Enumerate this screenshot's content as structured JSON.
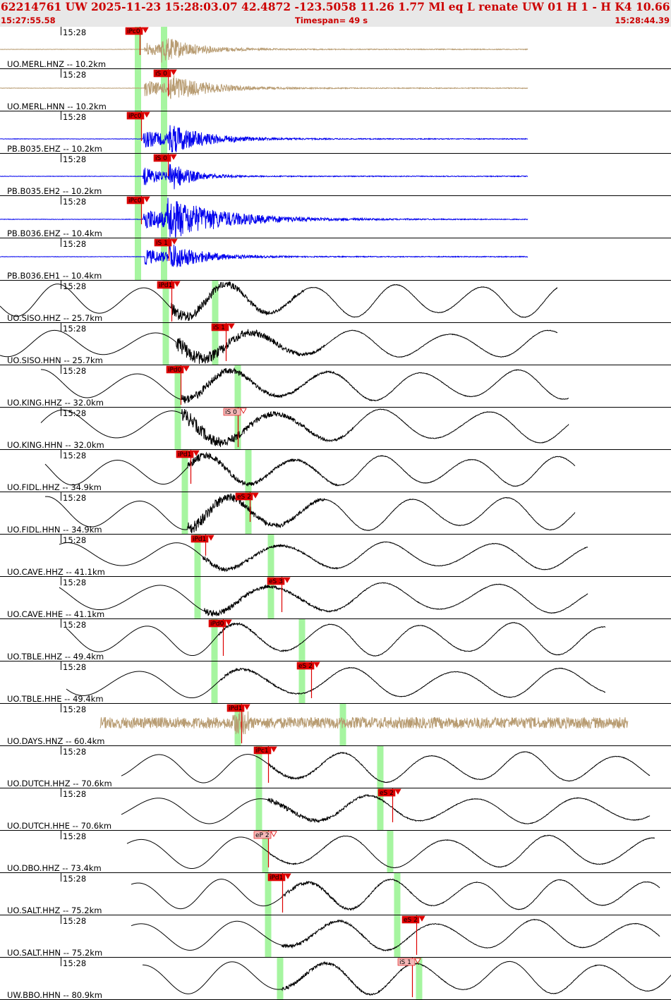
{
  "header": {
    "title": "62214761 UW 2025-11-23 15:28:03.07   42.4872 -123.5058  11.26  1.77 Ml  eq  L renate   UW 01  H   1  -  H K4   10.66  0.69",
    "start_time": "15:27:55.58",
    "timespan": "Timespan=  49 s",
    "end_time": "15:28:44.39"
  },
  "colors": {
    "beige": "#b89c72",
    "blue": "#0000ee",
    "black": "#000000",
    "pick": "#dd0000",
    "pick_weak": "#f4b8b8",
    "green": "#a6f5a0"
  },
  "tick_label": "15:28",
  "traces": [
    {
      "label": "UO.MERL.HNZ -- 10.2km",
      "color": "beige",
      "pick": {
        "label": "iPc0",
        "weak": false
      },
      "green": [
        195.5,
        232.5
      ]
    },
    {
      "label": "UO.MERL.HNN -- 10.2km",
      "color": "beige",
      "pick": {
        "label": "iS 0",
        "weak": false
      },
      "green": [
        195.5,
        232.5
      ]
    },
    {
      "label": "PB.B035.EHZ -- 10.2km",
      "color": "blue",
      "pick": {
        "label": "iPc0",
        "weak": false
      },
      "green": [
        195.5,
        232.5
      ]
    },
    {
      "label": "PB.B035.EH2 -- 10.2km",
      "color": "blue",
      "pick": {
        "label": "iS 0",
        "weak": false
      },
      "green": [
        195.5,
        232.5
      ]
    },
    {
      "label": "PB.B036.EHZ -- 10.4km",
      "color": "blue",
      "pick": {
        "label": "iPc0",
        "weak": false
      },
      "green": [
        195.5,
        232.5
      ]
    },
    {
      "label": "PB.B036.EH1 -- 10.4km",
      "color": "blue",
      "pick": {
        "label": "iS 1",
        "weak": false
      },
      "green": [
        195.5,
        232.5
      ]
    },
    {
      "label": "UO.SISO.HHZ -- 25.7km",
      "color": "black",
      "pick": {
        "label": "iPd1",
        "weak": false
      },
      "green": [
        235,
        305
      ]
    },
    {
      "label": "UO.SISO.HHN -- 25.7km",
      "color": "black",
      "pick": {
        "label": "iS 1",
        "weak": false
      },
      "green": [
        235,
        305
      ]
    },
    {
      "label": "UO.KING.HHZ -- 32.0km",
      "color": "black",
      "pick": {
        "label": "iPd0",
        "weak": false
      },
      "green": [
        252,
        337
      ]
    },
    {
      "label": "UO.KING.HHN -- 32.0km",
      "color": "black",
      "pick": {
        "label": "iS 0",
        "weak": true
      },
      "green": [
        252,
        337
      ]
    },
    {
      "label": "UO.FIDL.HHZ -- 34.9km",
      "color": "black",
      "pick": {
        "label": "iPd1",
        "weak": false
      },
      "green": [
        262,
        352
      ]
    },
    {
      "label": "UO.FIDL.HHN -- 34.9km",
      "color": "black",
      "pick": {
        "label": "eS 2",
        "weak": false
      },
      "green": [
        262,
        352
      ]
    },
    {
      "label": "UO.CAVE.HHZ -- 41.1km",
      "color": "black",
      "pick": {
        "label": "iPd1",
        "weak": false
      },
      "green": [
        280,
        384
      ]
    },
    {
      "label": "UO.CAVE.HHE -- 41.1km",
      "color": "black",
      "pick": {
        "label": "eS 3",
        "weak": false
      },
      "green": [
        280,
        384
      ]
    },
    {
      "label": "UO.TBLE.HHZ -- 49.4km",
      "color": "black",
      "pick": {
        "label": "iPd0",
        "weak": false
      },
      "green": [
        304,
        428
      ]
    },
    {
      "label": "UO.TBLE.HHE -- 49.4km",
      "color": "black",
      "pick": {
        "label": "eS 2",
        "weak": false
      },
      "green": [
        304,
        428
      ]
    },
    {
      "label": "UO.DAYS.HNZ -- 60.4km",
      "color": "beige",
      "pick": {
        "label": "iPd1",
        "weak": false
      },
      "green": [
        337,
        486
      ]
    },
    {
      "label": "UO.DUTCH.HHZ -- 70.6km",
      "color": "black",
      "pick": {
        "label": "iPc1",
        "weak": false
      },
      "green": [
        367,
        539
      ]
    },
    {
      "label": "UO.DUTCH.HHE -- 70.6km",
      "color": "black",
      "pick": {
        "label": "eS 2",
        "weak": false
      },
      "green": [
        367,
        539
      ]
    },
    {
      "label": "UO.DBO.HHZ -- 73.4km",
      "color": "black",
      "pick": {
        "label": "eP 2",
        "weak": true
      },
      "green": [
        376,
        553
      ]
    },
    {
      "label": "UO.SALT.HHZ -- 75.2km",
      "color": "black",
      "pick": {
        "label": "iPd1",
        "weak": false
      },
      "green": [
        380,
        563
      ]
    },
    {
      "label": "UO.SALT.HHN -- 75.2km",
      "color": "black",
      "pick": {
        "label": "eS 2",
        "weak": false
      },
      "green": [
        380,
        563
      ]
    },
    {
      "label": "UW.BBO.HHN -- 80.9km",
      "color": "black",
      "pick": {
        "label": "iS 1",
        "weak": true
      },
      "green": [
        397,
        594
      ]
    }
  ]
}
